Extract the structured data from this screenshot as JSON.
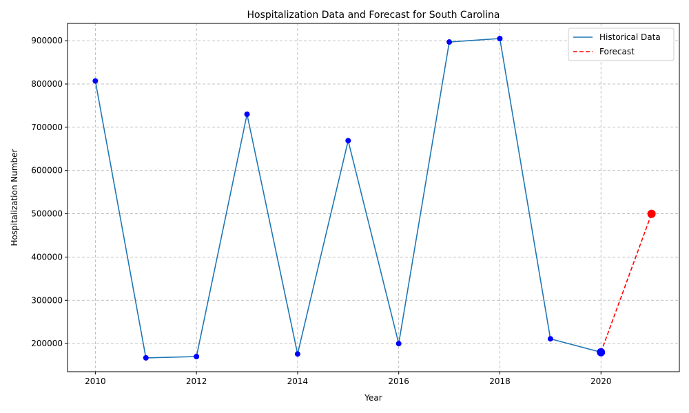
{
  "chart_data": {
    "type": "line",
    "title": "Hospitalization Data and Forecast for South Carolina",
    "xlabel": "Year",
    "ylabel": "Hospitalization Number",
    "xlim": [
      2009.45,
      2021.55
    ],
    "ylim": [
      135000,
      940000
    ],
    "x_ticks": [
      2010,
      2012,
      2014,
      2016,
      2018,
      2020
    ],
    "y_ticks": [
      200000,
      300000,
      400000,
      500000,
      600000,
      700000,
      800000,
      900000
    ],
    "grid": true,
    "legend_position": "top-right",
    "series": [
      {
        "name": "Historical Data",
        "style": "solid",
        "color": "#1f77b4",
        "marker_color": "#0000ff",
        "x": [
          2010,
          2011,
          2012,
          2013,
          2014,
          2015,
          2016,
          2017,
          2018,
          2019,
          2020
        ],
        "y": [
          807000,
          167000,
          170000,
          730000,
          176000,
          669000,
          200000,
          897000,
          905000,
          211000,
          180000
        ]
      },
      {
        "name": "Forecast",
        "style": "dashed",
        "color": "#ff0000",
        "marker_color": "#ff0000",
        "x": [
          2020,
          2021
        ],
        "y": [
          180000,
          500000
        ]
      }
    ]
  }
}
